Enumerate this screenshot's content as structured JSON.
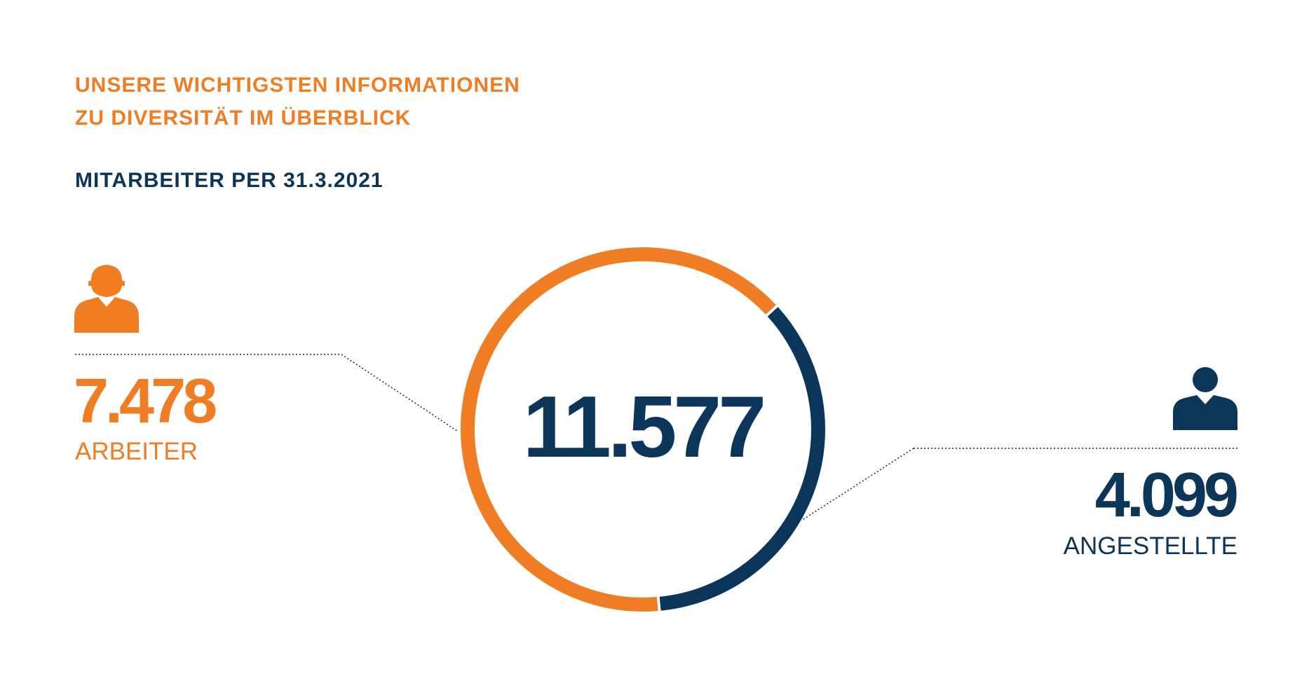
{
  "header": {
    "title_line1": "UNSERE WICHTIGSTEN INFORMATIONEN",
    "title_line2": "ZU DIVERSITÄT IM ÜBERBLICK",
    "subtitle": "MITARBEITER PER 31.3.2021"
  },
  "colors": {
    "orange": "#f07d24",
    "navy": "#0b3559"
  },
  "chart_data": {
    "type": "pie",
    "variant": "donut",
    "total_label": "11.577",
    "total": 11577,
    "slices": [
      {
        "label": "ARBEITER",
        "value": 7478,
        "value_label": "7.478",
        "color": "#f07d24",
        "icon": "construction-worker-icon"
      },
      {
        "label": "ANGESTELLTE",
        "value": 4099,
        "value_label": "4.099",
        "color": "#0b3559",
        "icon": "office-employee-icon"
      }
    ]
  }
}
